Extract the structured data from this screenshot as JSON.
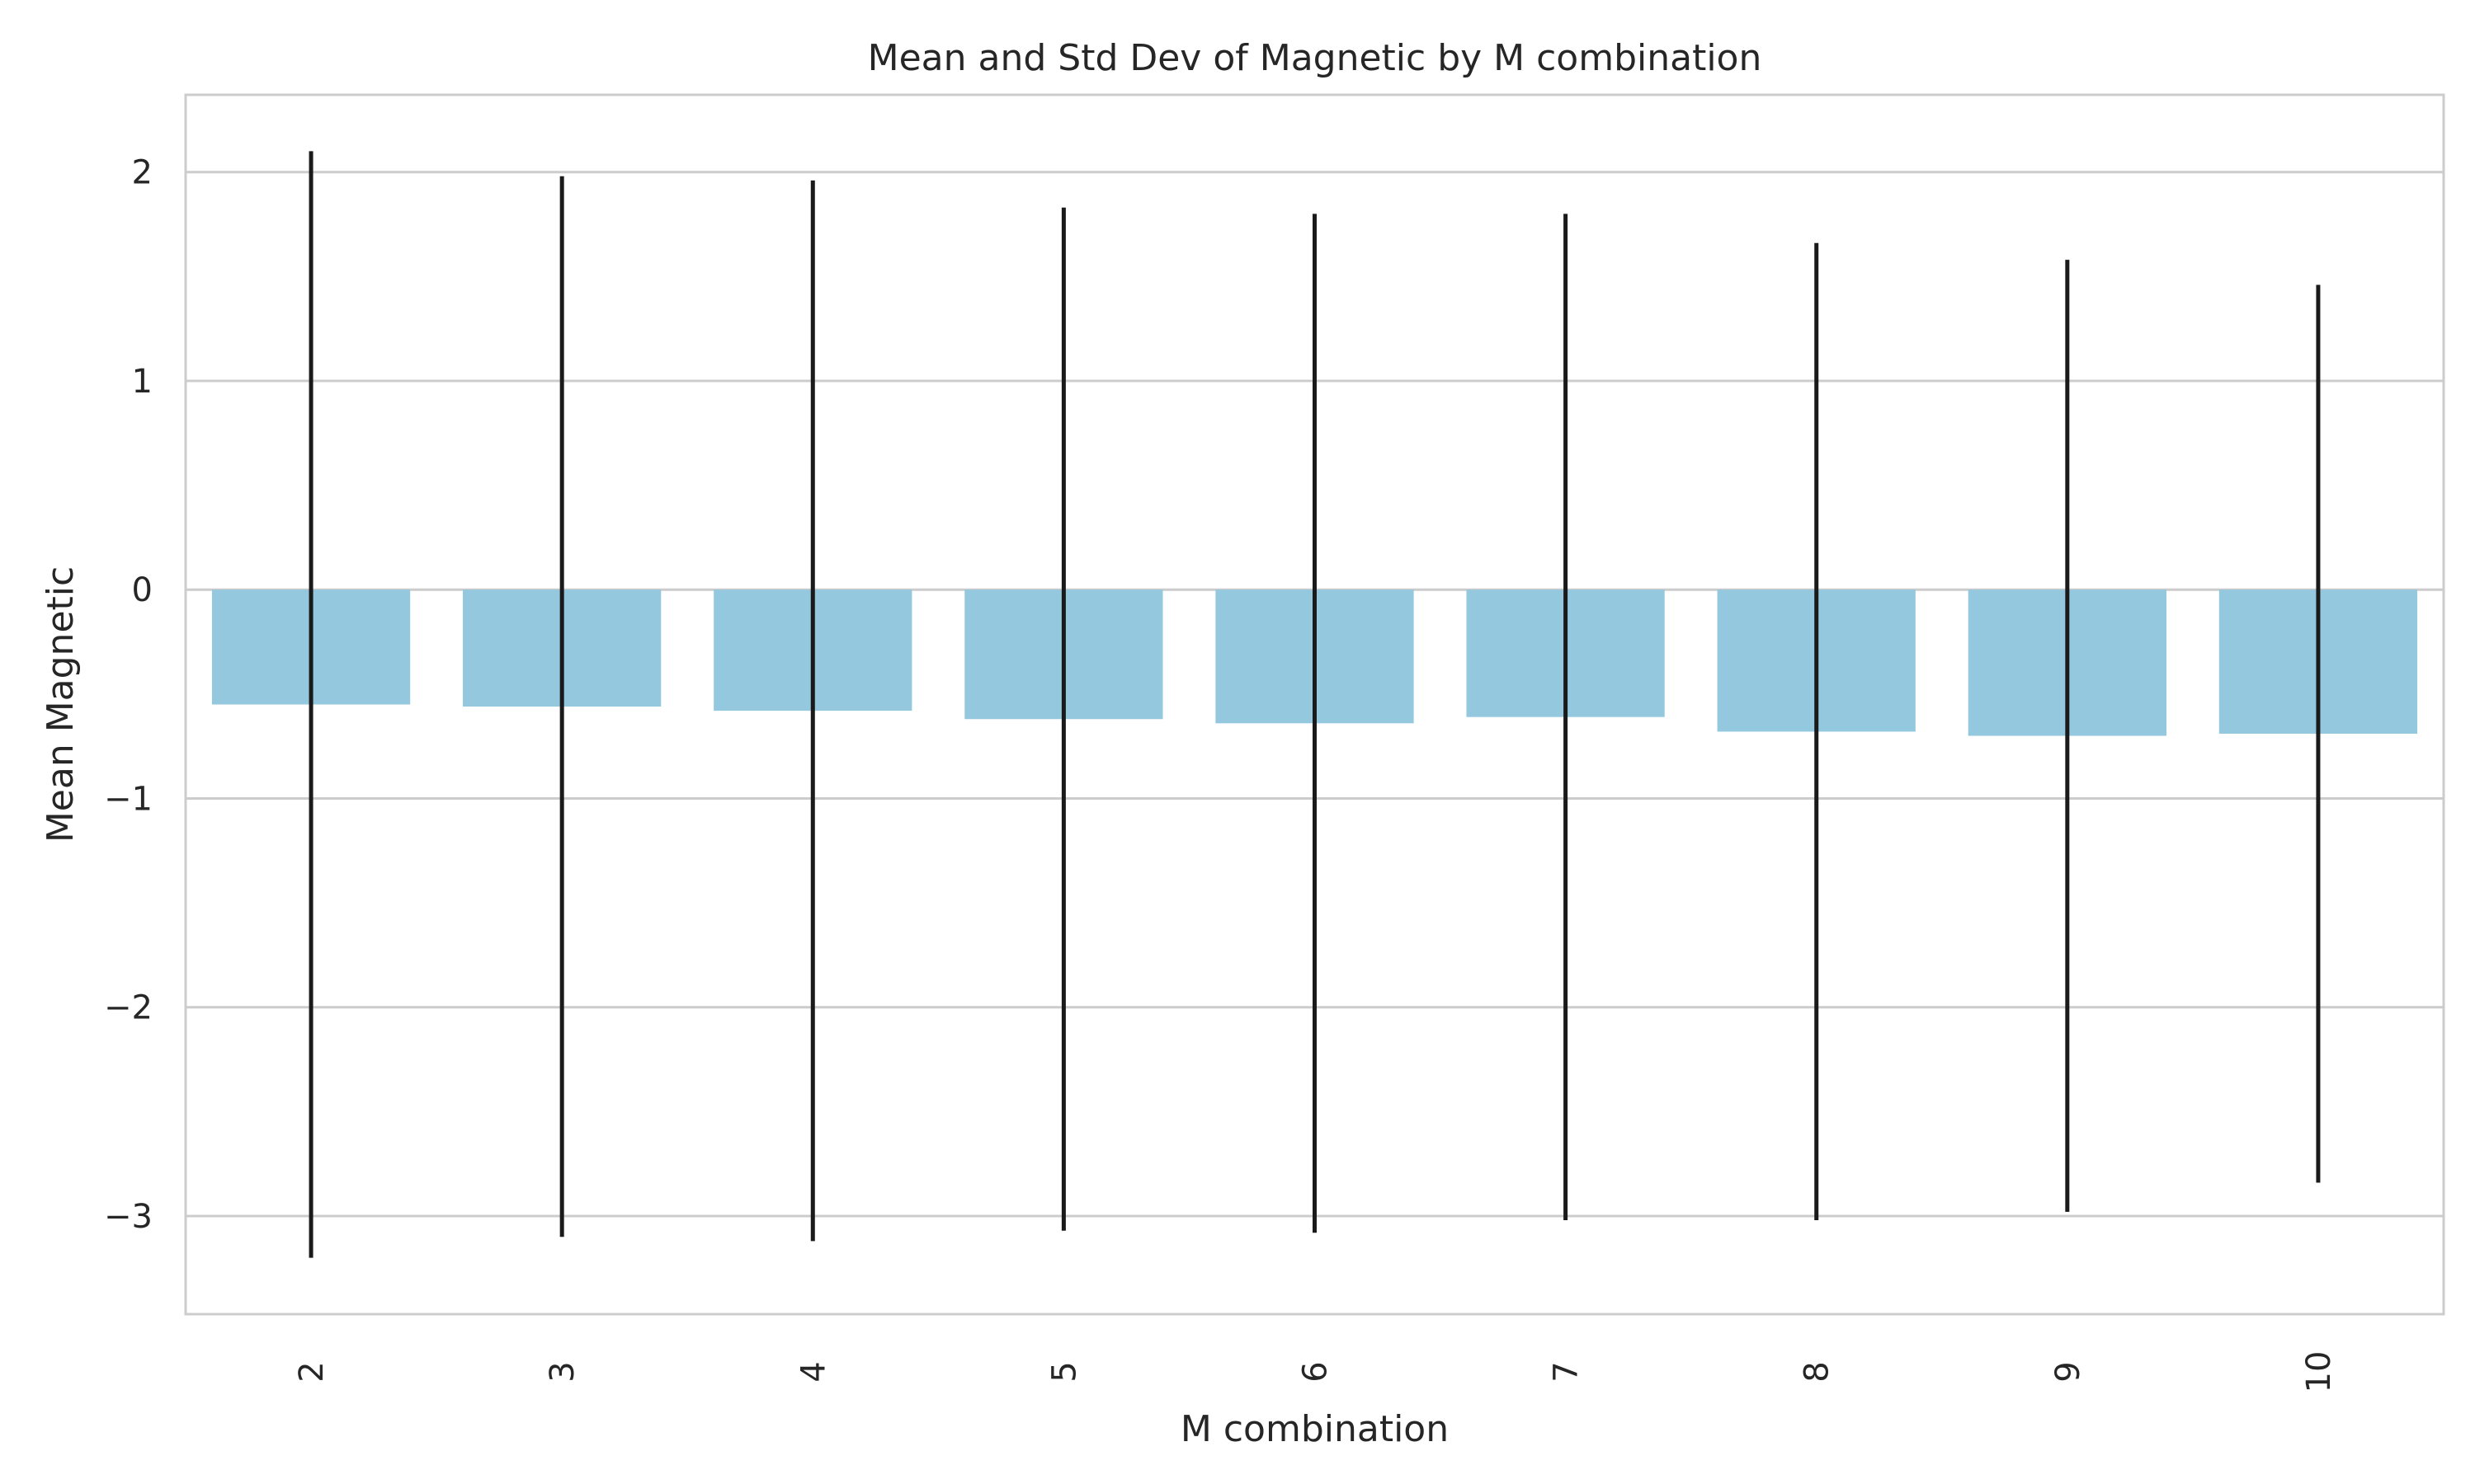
{
  "chart_data": {
    "type": "bar",
    "title": "Mean and Std Dev of Magnetic by M combination",
    "xlabel": "M combination",
    "ylabel": "Mean Magnetic",
    "categories": [
      "2",
      "3",
      "4",
      "5",
      "6",
      "7",
      "8",
      "9",
      "10"
    ],
    "values": [
      -0.55,
      -0.56,
      -0.58,
      -0.62,
      -0.64,
      -0.61,
      -0.68,
      -0.7,
      -0.69
    ],
    "std": [
      2.65,
      2.54,
      2.54,
      2.45,
      2.44,
      2.41,
      2.34,
      2.28,
      2.15
    ],
    "ylim": [
      -3.47,
      2.37
    ],
    "yticks": [
      -3,
      -2,
      -1,
      0,
      1,
      2
    ],
    "ytick_labels": [
      "−3",
      "−2",
      "−1",
      "0",
      "1",
      "2"
    ],
    "grid": true,
    "bar_color": "#93c8df",
    "errorbar_color": "#1a1a1a",
    "grid_color": "#cccccc"
  }
}
